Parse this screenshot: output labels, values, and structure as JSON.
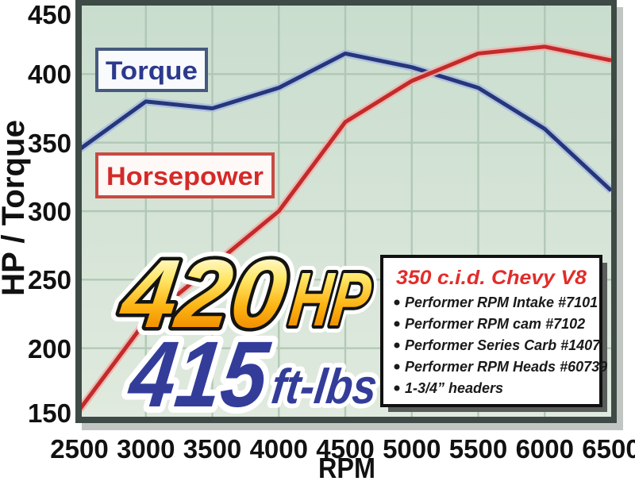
{
  "chart_data": {
    "type": "line",
    "title": "",
    "x": [
      2500,
      3000,
      3500,
      4000,
      4500,
      5000,
      5500,
      6000,
      6500
    ],
    "xlabel": "RPM",
    "ylabel": "HP / Torque",
    "xlim": [
      2500,
      6500
    ],
    "ylim": [
      150,
      450
    ],
    "y_tick_step": 50,
    "grid": true,
    "legend_position": "boxed labels inside plot, upper-left",
    "series": [
      {
        "name": "Torque",
        "color": "#26367b",
        "halo": "#aabdde",
        "values": [
          345,
          380,
          375,
          390,
          415,
          405,
          390,
          360,
          315
        ]
      },
      {
        "name": "Horsepower",
        "color": "#c22b2b",
        "halo": "#efb3ad",
        "values": [
          155,
          220,
          260,
          300,
          365,
          395,
          415,
          420,
          410
        ]
      }
    ]
  },
  "axes": {
    "y_label": "HP / Torque",
    "x_label": "RPM",
    "y_ticks": [
      "450",
      "400",
      "350",
      "300",
      "250",
      "200",
      "150"
    ],
    "x_ticks": [
      "2500",
      "3000",
      "3500",
      "4000",
      "4500",
      "5000",
      "5500",
      "6000",
      "6500"
    ]
  },
  "legend": {
    "torque": "Torque",
    "horsepower": "Horsepower"
  },
  "headline": {
    "hp_value": "420",
    "hp_unit": "HP",
    "torque_value": "415",
    "torque_unit": "ft-lbs"
  },
  "spec_box": {
    "title": "350 c.i.d. Chevy V8",
    "items": [
      "Performer RPM Intake #7101",
      "Performer RPM cam #7102",
      "Performer Series Carb #1407",
      "Performer RPM Heads #60739",
      "1-3/4” headers"
    ]
  },
  "colors": {
    "plot_bg_top": "#c9ddce",
    "plot_bg_bottom": "#e0eade",
    "gridline": "#a9c2ae",
    "frame": "#3e4a45",
    "frame_shadow": "#c2c6c2",
    "torque_line": "#26367b",
    "horsepower_line": "#c22b2b",
    "torque_label_text": "#2c3a8c",
    "torque_label_border": "#46597e",
    "horsepower_label_text": "#d42a28",
    "horsepower_label_border": "#c84a42",
    "headline_gold_top": "#fffbda",
    "headline_gold_bottom": "#f08c00",
    "headline_outline": "#141410",
    "headline_blue": "#333d99",
    "spec_title_red": "#e22c2a",
    "spec_shadow": "#5a5e5b"
  }
}
